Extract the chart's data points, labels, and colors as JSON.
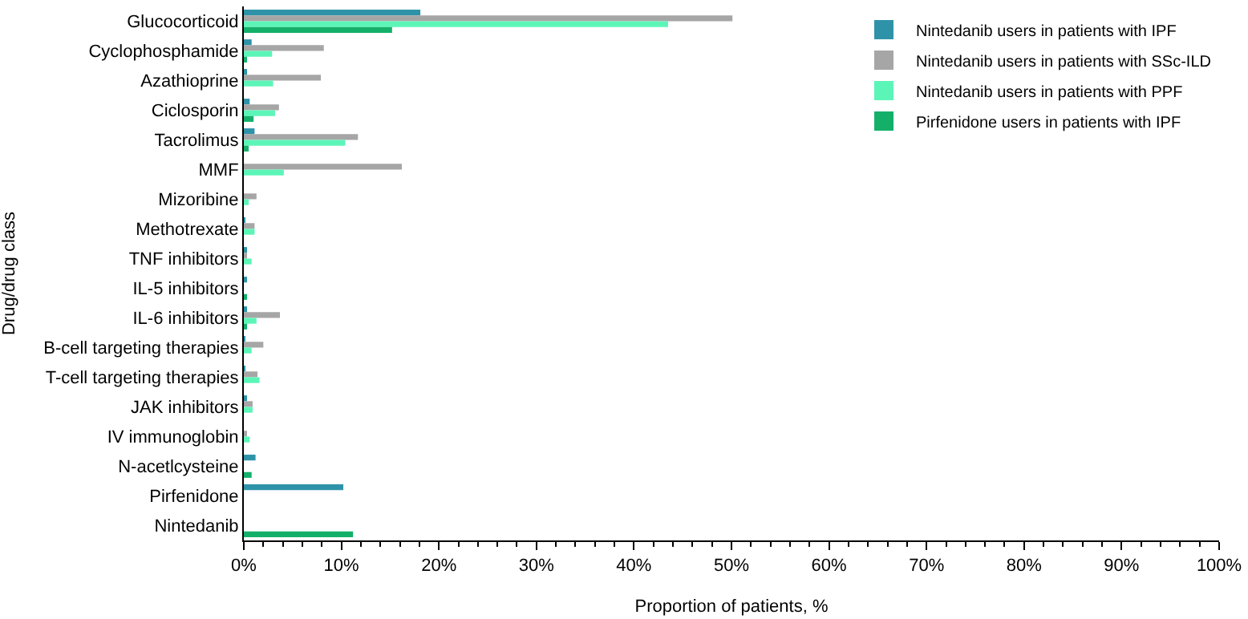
{
  "chart_data": {
    "type": "bar",
    "orientation": "horizontal",
    "xlabel": "Proportion of patients, %",
    "ylabel": "Drug/drug class",
    "categories": [
      "Glucocorticoid",
      "Cyclophosphamide",
      "Azathioprine",
      "Ciclosporin",
      "Tacrolimus",
      "MMF",
      "Mizoribine",
      "Methotrexate",
      "TNF inhibitors",
      "IL-5 inhibitors",
      "IL-6 inhibitors",
      "B-cell targeting therapies",
      "T-cell targeting therapies",
      "JAK inhibitors",
      "IV immunoglobin",
      "N-acetlcysteine",
      "Pirfenidone",
      "Nintedanib"
    ],
    "series": [
      {
        "name": "Nintedanib users in patients with IPF",
        "color": "#2e93a8",
        "values": [
          18.1,
          0.8,
          0.2,
          0.6,
          1.1,
          0,
          0,
          0.1,
          0.2,
          0.2,
          0.3,
          0.1,
          0.1,
          0.2,
          0,
          1.2,
          10.2,
          0
        ]
      },
      {
        "name": "Nintedanib users in patients with SSc-ILD",
        "color": "#a6a6a6",
        "values": [
          50.1,
          8.2,
          7.9,
          3.6,
          11.7,
          16.2,
          1.3,
          1.1,
          0.3,
          0,
          3.7,
          2.0,
          1.4,
          0.9,
          0.2,
          0,
          0,
          0
        ]
      },
      {
        "name": "Nintedanib users in patients with PPF",
        "color": "#5cf5b8",
        "values": [
          43.5,
          2.9,
          3.0,
          3.2,
          10.4,
          4.1,
          0.5,
          1.1,
          0.8,
          0,
          1.3,
          0.8,
          1.6,
          0.9,
          0.6,
          0,
          0,
          0
        ]
      },
      {
        "name": "Pirfenidone users in patients with IPF",
        "color": "#14b06a",
        "values": [
          15.2,
          0.3,
          0,
          1.0,
          0.5,
          0,
          0,
          0,
          0,
          0.2,
          0.3,
          0,
          0,
          0,
          0,
          0.8,
          0,
          11.2
        ]
      }
    ],
    "xlim": [
      0,
      100
    ],
    "xticks": [
      {
        "value": 0,
        "label": "0%"
      },
      {
        "value": 10,
        "label": "10%"
      },
      {
        "value": 20,
        "label": "20%"
      },
      {
        "value": 30,
        "label": "30%"
      },
      {
        "value": 40,
        "label": "40%"
      },
      {
        "value": 50,
        "label": "50%"
      },
      {
        "value": 60,
        "label": "60%"
      },
      {
        "value": 70,
        "label": "70%"
      },
      {
        "value": 80,
        "label": "80%"
      },
      {
        "value": 90,
        "label": "90%"
      },
      {
        "value": 100,
        "label": "100%"
      }
    ],
    "legend": "top right"
  }
}
